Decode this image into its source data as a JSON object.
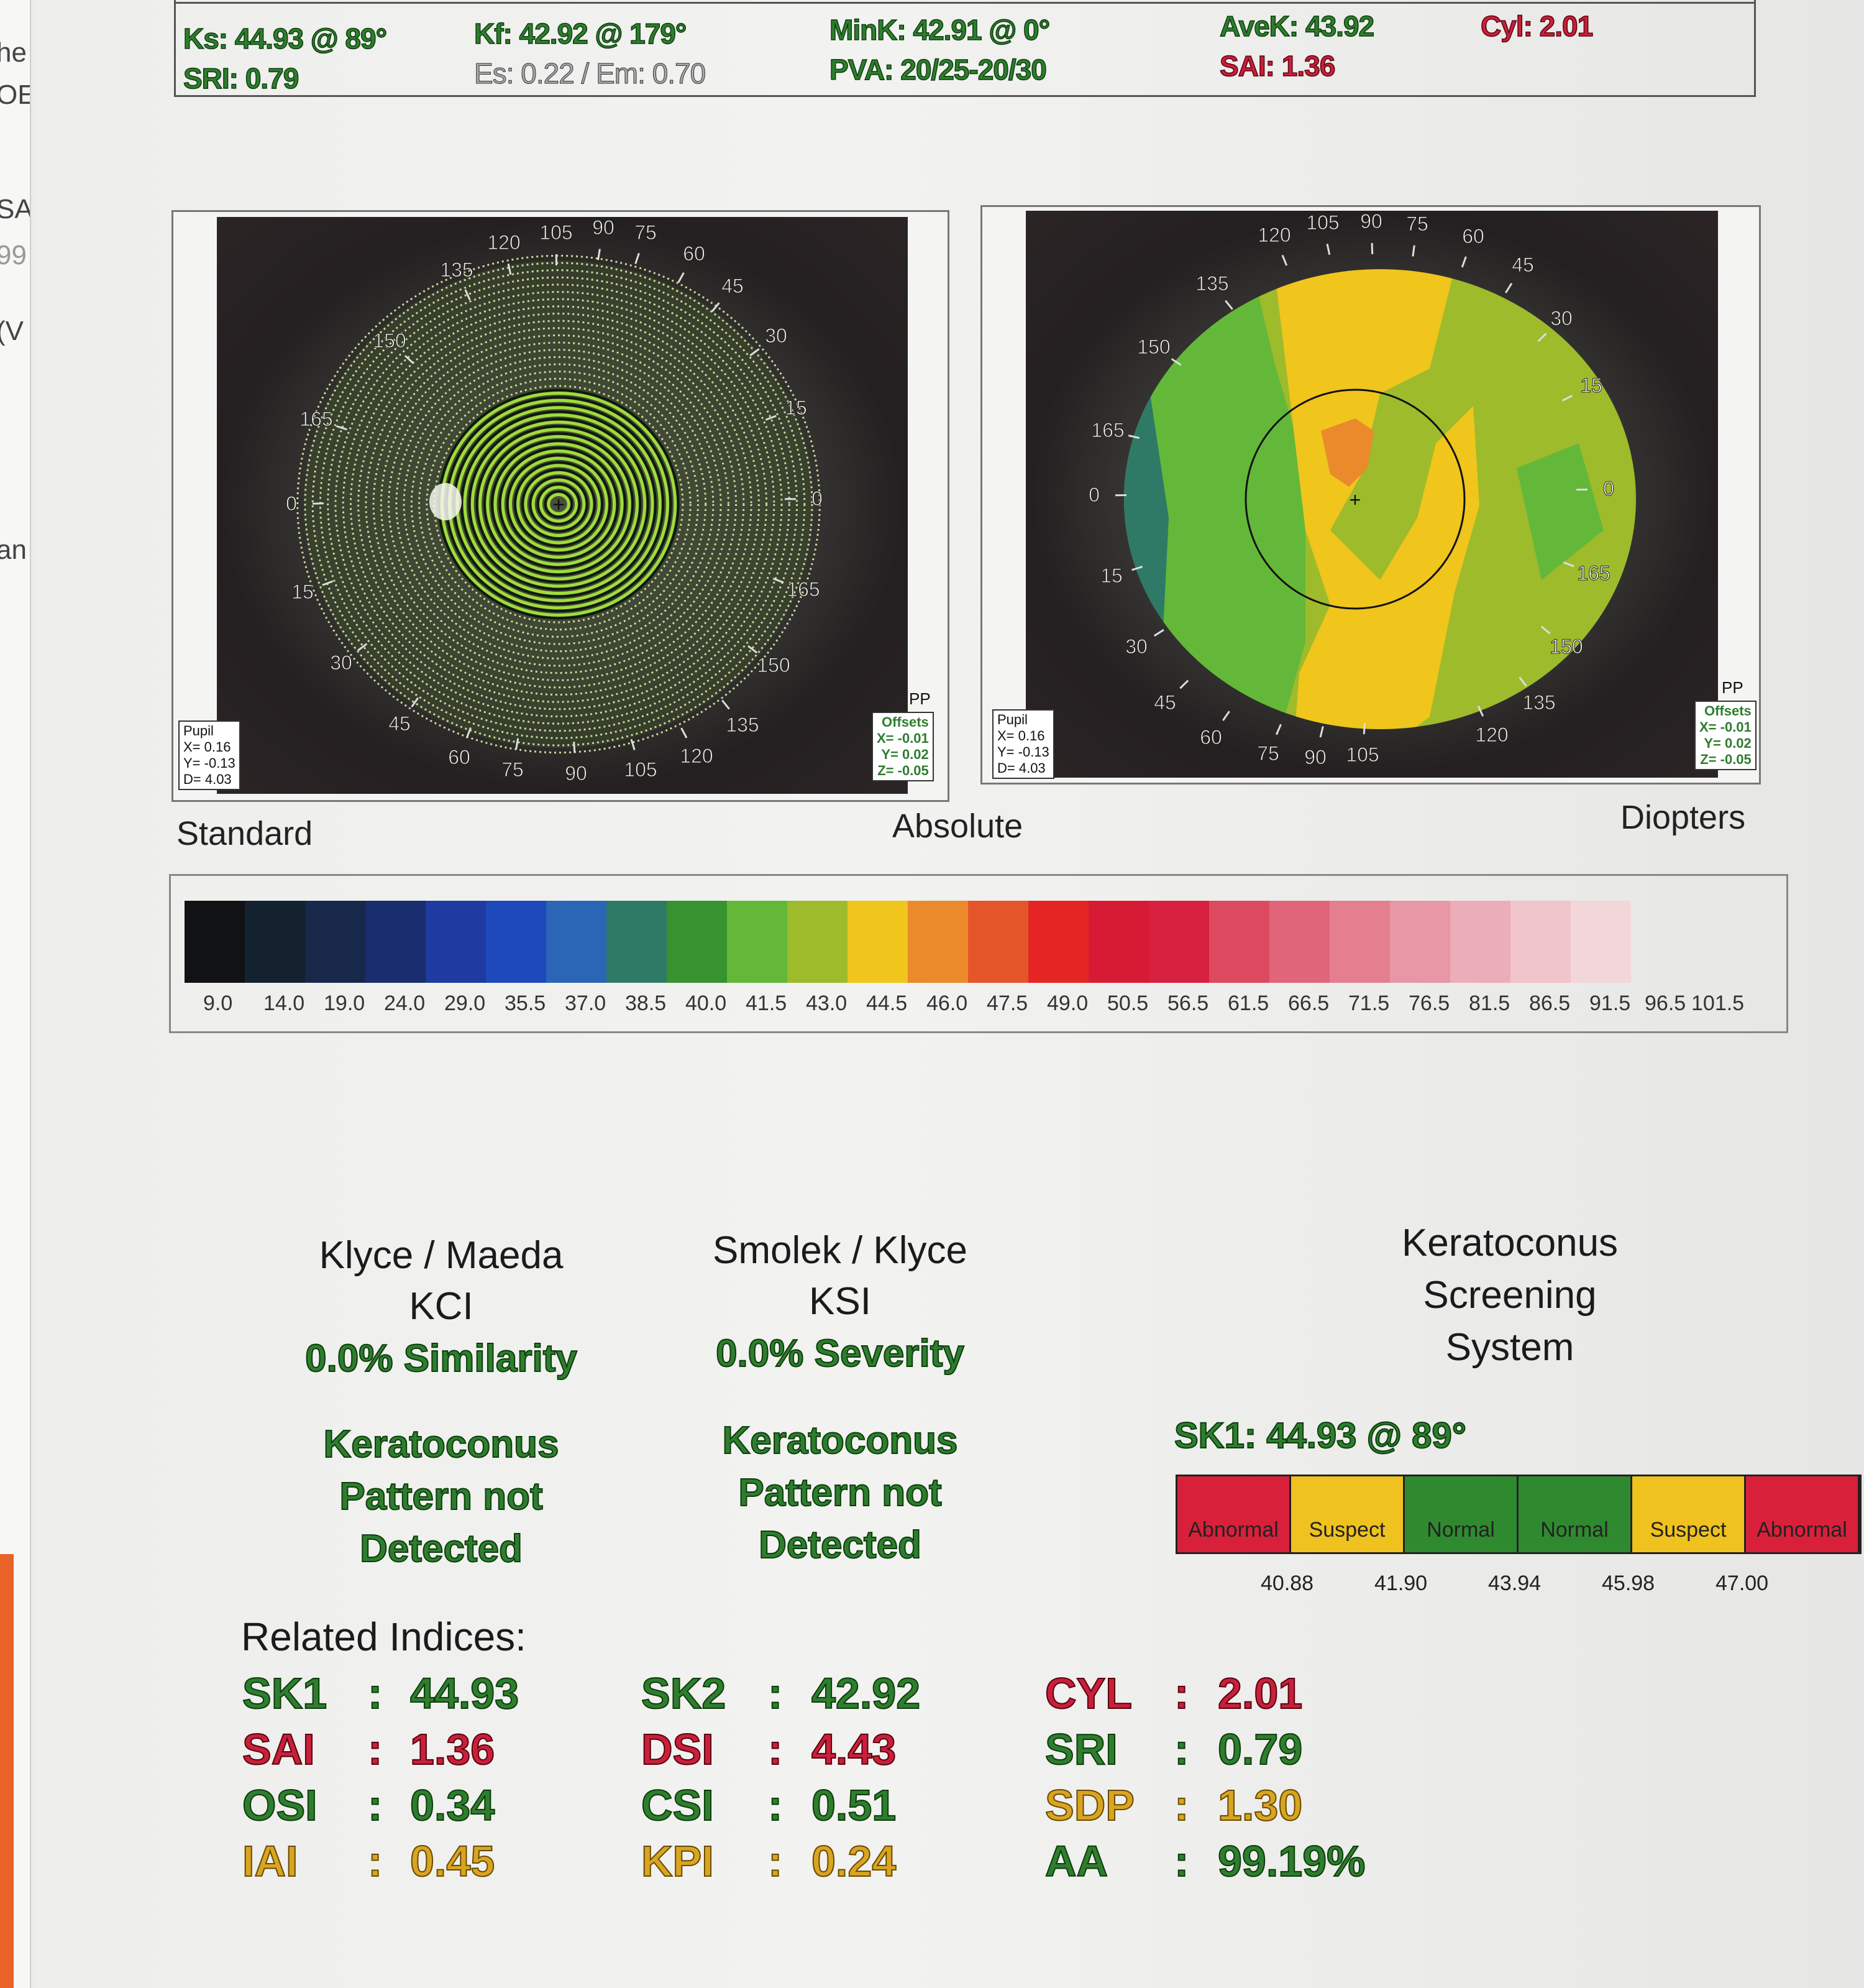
{
  "left_edge": [
    "he",
    "OE",
    "SA",
    "99",
    "(V",
    "an"
  ],
  "summary": {
    "ks": "Ks: 44.93 @  89°",
    "sri": "SRI: 0.79",
    "kf": "Kf: 42.92 @ 179°",
    "es_em": "Es: 0.22 / Em: 0.70",
    "mink": "MinK: 42.91 @   0°",
    "pva": "PVA: 20/25-20/30",
    "avek": "AveK: 43.92",
    "sai": "SAI: 1.36",
    "cyl": "Cyl:  2.01"
  },
  "maps": {
    "ring_labels": [
      "0",
      "15",
      "30",
      "45",
      "60",
      "75",
      "90",
      "105",
      "120",
      "135",
      "150",
      "165",
      "0",
      "165",
      "150",
      "135",
      "120",
      "105",
      "90",
      "75",
      "60",
      "45",
      "30",
      "15"
    ],
    "left_ring_labels": {
      "top": [
        "105",
        "90",
        "75",
        "120",
        "60",
        "135",
        "45",
        "150",
        "30",
        "165",
        "15"
      ],
      "right": [
        "0",
        "165",
        "150",
        "135"
      ],
      "bottom": [
        "120",
        "105",
        "90",
        "75",
        "60",
        "45",
        "30",
        "15"
      ],
      "left": [
        "0"
      ]
    },
    "pupil": {
      "title": "Pupil",
      "x": "X=  0.16",
      "y": "Y= -0.13",
      "d": "D=  4.03"
    },
    "offsets": {
      "title": "Offsets",
      "x": "X= -0.01",
      "y": "Y=  0.02",
      "z": "Z= -0.05"
    },
    "pp": "PP",
    "label_standard": "Standard",
    "label_absolute": "Absolute",
    "label_diopters": "Diopters"
  },
  "scale": {
    "colors": [
      "#111214",
      "#142230",
      "#17284a",
      "#1a2d6e",
      "#1f3aa0",
      "#1e49bb",
      "#2a66b5",
      "#2e7a66",
      "#36932e",
      "#63b83a",
      "#9dbb2b",
      "#f0c51c",
      "#ea8a2a",
      "#e5552a",
      "#e52424",
      "#d81b34",
      "#d82040",
      "#dd4a60",
      "#e0657a",
      "#e47f90",
      "#e797a5",
      "#ebaeb8",
      "#f0c5cb",
      "#f3d6da"
    ],
    "ticks": [
      "9.0",
      "14.0",
      "19.0",
      "24.0",
      "29.0",
      "35.5",
      "37.0",
      "38.5",
      "40.0",
      "41.5",
      "43.0",
      "44.5",
      "46.0",
      "47.5",
      "49.0",
      "50.5",
      "56.5",
      "61.5",
      "66.5",
      "71.5",
      "76.5",
      "81.5",
      "86.5",
      "91.5",
      "96.5",
      "101.5"
    ]
  },
  "kci": {
    "title1": "Klyce / Maeda",
    "title2": "KCI",
    "value": "0.0% Similarity",
    "result": [
      "Keratoconus",
      "Pattern not",
      "Detected"
    ]
  },
  "ksi": {
    "title1": "Smolek / Klyce",
    "title2": "KSI",
    "value": "0.0% Severity",
    "result": [
      "Keratoconus",
      "Pattern not",
      "Detected"
    ]
  },
  "kss": {
    "title": [
      "Keratoconus",
      "Screening",
      "System"
    ],
    "sk1": "SK1: 44.93 @ 89°",
    "segments": [
      {
        "label": "Abnormal",
        "color": "#d9203a"
      },
      {
        "label": "Suspect",
        "color": "#f0c21f"
      },
      {
        "label": "Normal",
        "color": "#2f8a2f"
      },
      {
        "label": "Normal",
        "color": "#2f8a2f"
      },
      {
        "label": "Suspect",
        "color": "#f0c21f"
      },
      {
        "label": "Abnormal",
        "color": "#d9203a"
      }
    ],
    "ticks": [
      "40.88",
      "41.90",
      "43.94",
      "45.98",
      "47.00"
    ]
  },
  "related": {
    "title": "Related Indices:",
    "rows": [
      [
        {
          "name": "SK1",
          "value": "44.93",
          "status": "g"
        },
        {
          "name": "SK2",
          "value": "42.92",
          "status": "g"
        },
        {
          "name": "CYL",
          "value": "2.01",
          "status": "r"
        }
      ],
      [
        {
          "name": "SAI",
          "value": "1.36",
          "status": "r"
        },
        {
          "name": "DSI",
          "value": "4.43",
          "status": "r"
        },
        {
          "name": "SRI",
          "value": "0.79",
          "status": "g"
        }
      ],
      [
        {
          "name": "OSI",
          "value": "0.34",
          "status": "g"
        },
        {
          "name": "CSI",
          "value": "0.51",
          "status": "g"
        },
        {
          "name": "SDP",
          "value": "1.30",
          "status": "y"
        }
      ],
      [
        {
          "name": "IAI",
          "value": "0.45",
          "status": "y"
        },
        {
          "name": "KPI",
          "value": "0.24",
          "status": "y"
        },
        {
          "name": "AA",
          "value": "99.19%",
          "status": "g"
        }
      ]
    ],
    "colon": ":"
  }
}
